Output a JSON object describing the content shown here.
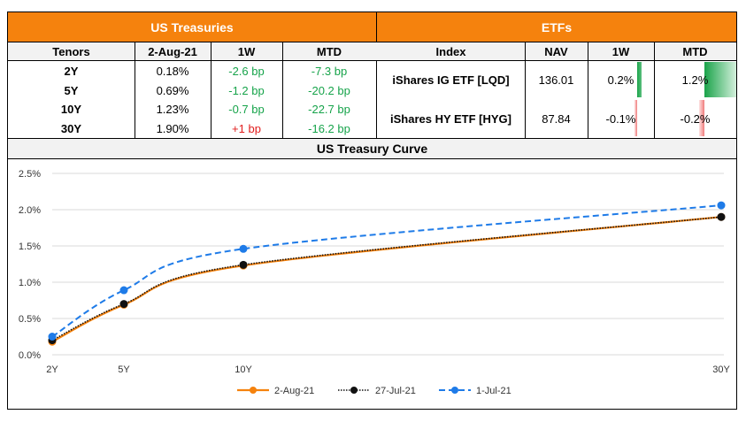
{
  "treasuries": {
    "title": "US Treasuries",
    "headers": [
      "Tenors",
      "2-Aug-21",
      "1W",
      "MTD"
    ],
    "rows": [
      {
        "tenor": "2Y",
        "yield": "0.18%",
        "w1": "-2.6 bp",
        "mtd": "-7.3 bp",
        "w1_dir": "down"
      },
      {
        "tenor": "5Y",
        "yield": "0.69%",
        "w1": "-1.2 bp",
        "mtd": "-20.2 bp",
        "w1_dir": "down"
      },
      {
        "tenor": "10Y",
        "yield": "1.23%",
        "w1": "-0.7 bp",
        "mtd": "-22.7 bp",
        "w1_dir": "down"
      },
      {
        "tenor": "30Y",
        "yield": "1.90%",
        "w1": "+1 bp",
        "mtd": "-16.2 bp",
        "w1_dir": "up"
      }
    ]
  },
  "etfs": {
    "title": "ETFs",
    "headers": [
      "Index",
      "NAV",
      "1W",
      "MTD"
    ],
    "rows": [
      {
        "index": "iShares IG ETF [LQD]",
        "nav": "136.01",
        "w1": "0.2%",
        "mtd": "1.2%",
        "w1_value": 0.2,
        "mtd_value": 1.2
      },
      {
        "index": "iShares HY ETF [HYG]",
        "nav": "87.84",
        "w1": "-0.1%",
        "mtd": "-0.2%",
        "w1_value": -0.1,
        "mtd_value": -0.2
      }
    ],
    "colors": {
      "positive": "#1aa34a",
      "negative": "#f4a0a0"
    }
  },
  "chart_data": {
    "type": "line",
    "title": "US Treasury Curve",
    "categories": [
      "2Y",
      "5Y",
      "10Y",
      "30Y"
    ],
    "x_years": [
      2,
      5,
      10,
      30
    ],
    "ylabel": "",
    "xlabel": "",
    "ylim": [
      0,
      2.5
    ],
    "yticks": [
      "0.0%",
      "0.5%",
      "1.0%",
      "1.5%",
      "2.0%",
      "2.5%"
    ],
    "ytick_values": [
      0,
      0.5,
      1.0,
      1.5,
      2.0,
      2.5
    ],
    "grid": true,
    "legend_position": "bottom",
    "series": [
      {
        "name": "2-Aug-21",
        "values": [
          0.18,
          0.69,
          1.23,
          1.9
        ],
        "color": "#f5820d",
        "style": "solid"
      },
      {
        "name": "27-Jul-21",
        "values": [
          0.2,
          0.7,
          1.24,
          1.9
        ],
        "color": "#111111",
        "style": "dotted"
      },
      {
        "name": "1-Jul-21",
        "values": [
          0.25,
          0.89,
          1.46,
          2.06
        ],
        "color": "#1e7be8",
        "style": "dashed"
      }
    ]
  }
}
